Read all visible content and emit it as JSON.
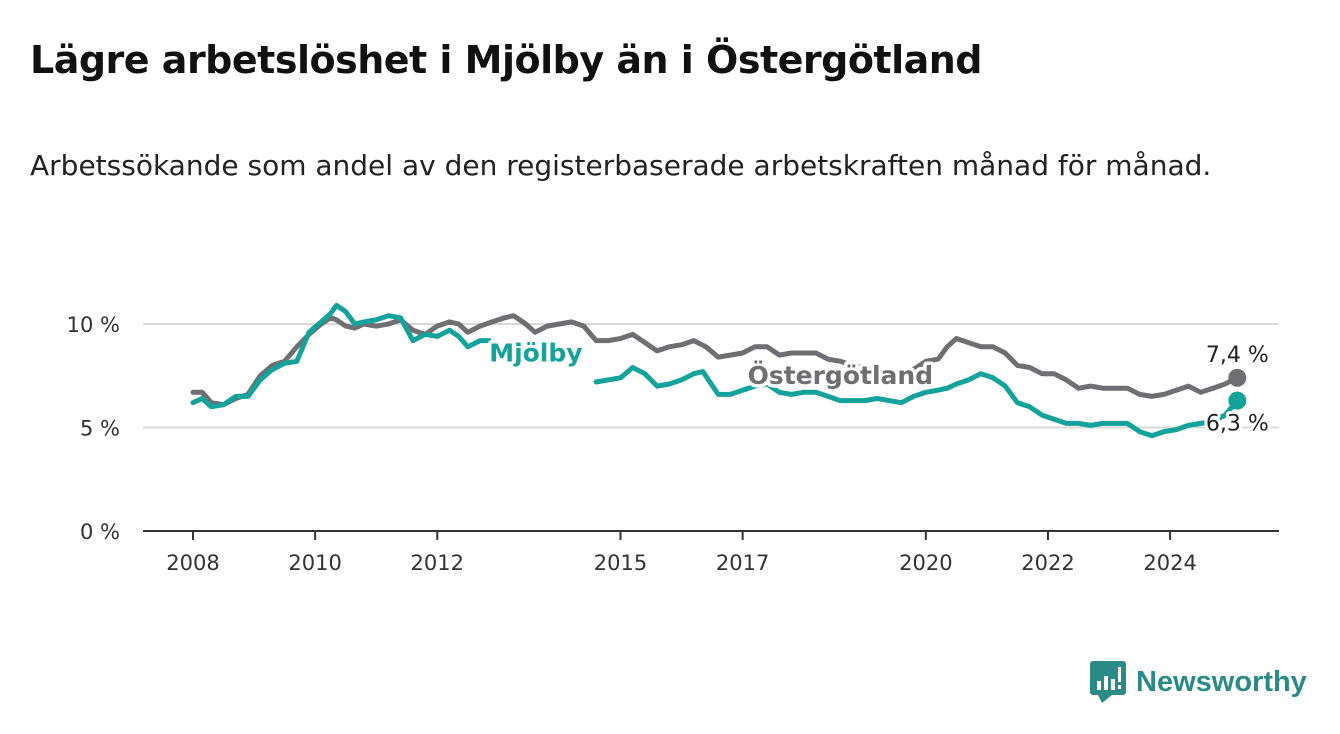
{
  "title": "Lägre arbetslöshet i Mjölby än i Östergötland",
  "subtitle": "Arbetssökande som andel av den registerbaserade arbetskraften månad för månad.",
  "brand": {
    "name": "Newsworthy",
    "icon": "newsworthy-logo-icon",
    "color": "#2a8b86"
  },
  "chart_data": {
    "type": "line",
    "title": "Lägre arbetslöshet i Mjölby än i Östergötland",
    "subtitle": "Arbetssökande som andel av den registerbaserade arbetskraften månad för månad.",
    "xlabel": "",
    "ylabel": "",
    "xlim": [
      2007.8,
      2025.7
    ],
    "ylim": [
      0,
      10
    ],
    "yticks": [
      {
        "value": 0,
        "label": "0 %"
      },
      {
        "value": 5,
        "label": "5 %"
      },
      {
        "value": 10,
        "label": "10 %"
      }
    ],
    "xticks": [
      {
        "value": 2008,
        "label": "2008"
      },
      {
        "value": 2010,
        "label": "2010"
      },
      {
        "value": 2012,
        "label": "2012"
      },
      {
        "value": 2015,
        "label": "2015"
      },
      {
        "value": 2017,
        "label": "2017"
      },
      {
        "value": 2020,
        "label": "2020"
      },
      {
        "value": 2022,
        "label": "2022"
      },
      {
        "value": 2024,
        "label": "2024"
      }
    ],
    "grid": true,
    "legend": "inline labels",
    "series": [
      {
        "name": "Östergötland",
        "color": "#6e6e73",
        "end_label": "7,4 %",
        "points": [
          [
            2008.0,
            6.7
          ],
          [
            2008.15,
            6.7
          ],
          [
            2008.3,
            6.2
          ],
          [
            2008.5,
            6.1
          ],
          [
            2008.7,
            6.4
          ],
          [
            2008.9,
            6.6
          ],
          [
            2009.1,
            7.5
          ],
          [
            2009.3,
            8.0
          ],
          [
            2009.5,
            8.2
          ],
          [
            2009.7,
            8.9
          ],
          [
            2009.9,
            9.5
          ],
          [
            2010.1,
            10.0
          ],
          [
            2010.25,
            10.3
          ],
          [
            2010.35,
            10.2
          ],
          [
            2010.5,
            9.9
          ],
          [
            2010.65,
            9.8
          ],
          [
            2010.8,
            10.0
          ],
          [
            2011.0,
            9.9
          ],
          [
            2011.2,
            10.0
          ],
          [
            2011.4,
            10.2
          ],
          [
            2011.6,
            9.7
          ],
          [
            2011.8,
            9.5
          ],
          [
            2012.0,
            9.9
          ],
          [
            2012.2,
            10.1
          ],
          [
            2012.35,
            10.0
          ],
          [
            2012.5,
            9.6
          ],
          [
            2012.7,
            9.9
          ],
          [
            2012.9,
            10.1
          ],
          [
            2013.1,
            10.3
          ],
          [
            2013.25,
            10.4
          ],
          [
            2013.45,
            10.0
          ],
          [
            2013.6,
            9.6
          ],
          [
            2013.8,
            9.9
          ],
          [
            2014.0,
            10.0
          ],
          [
            2014.2,
            10.1
          ],
          [
            2014.4,
            9.9
          ],
          [
            2014.6,
            9.2
          ],
          [
            2014.8,
            9.2
          ],
          [
            2015.0,
            9.3
          ],
          [
            2015.2,
            9.5
          ],
          [
            2015.4,
            9.1
          ],
          [
            2015.6,
            8.7
          ],
          [
            2015.8,
            8.9
          ],
          [
            2016.0,
            9.0
          ],
          [
            2016.2,
            9.2
          ],
          [
            2016.4,
            8.9
          ],
          [
            2016.6,
            8.4
          ],
          [
            2016.8,
            8.5
          ],
          [
            2017.0,
            8.6
          ],
          [
            2017.2,
            8.9
          ],
          [
            2017.4,
            8.9
          ],
          [
            2017.6,
            8.5
          ],
          [
            2017.8,
            8.6
          ],
          [
            2018.0,
            8.6
          ],
          [
            2018.2,
            8.6
          ],
          [
            2018.4,
            8.3
          ],
          [
            2018.6,
            8.2
          ],
          [
            2018.8,
            8.0
          ],
          [
            2019.0,
            7.9
          ],
          [
            2019.2,
            7.8
          ],
          [
            2019.4,
            7.7
          ],
          [
            2019.6,
            7.7
          ],
          [
            2019.8,
            7.8
          ],
          [
            2020.0,
            8.2
          ],
          [
            2020.2,
            8.3
          ],
          [
            2020.35,
            8.9
          ],
          [
            2020.5,
            9.3
          ],
          [
            2020.7,
            9.1
          ],
          [
            2020.9,
            8.9
          ],
          [
            2021.1,
            8.9
          ],
          [
            2021.3,
            8.6
          ],
          [
            2021.5,
            8.0
          ],
          [
            2021.7,
            7.9
          ],
          [
            2021.9,
            7.6
          ],
          [
            2022.1,
            7.6
          ],
          [
            2022.3,
            7.3
          ],
          [
            2022.5,
            6.9
          ],
          [
            2022.7,
            7.0
          ],
          [
            2022.9,
            6.9
          ],
          [
            2023.1,
            6.9
          ],
          [
            2023.3,
            6.9
          ],
          [
            2023.5,
            6.6
          ],
          [
            2023.7,
            6.5
          ],
          [
            2023.9,
            6.6
          ],
          [
            2024.1,
            6.8
          ],
          [
            2024.3,
            7.0
          ],
          [
            2024.5,
            6.7
          ],
          [
            2024.7,
            6.9
          ],
          [
            2024.9,
            7.1
          ],
          [
            2025.1,
            7.4
          ]
        ]
      },
      {
        "name": "Mjölby",
        "color": "#13a39a",
        "end_label": "6,3 %",
        "points": [
          [
            2008.0,
            6.2
          ],
          [
            2008.15,
            6.4
          ],
          [
            2008.3,
            6.0
          ],
          [
            2008.5,
            6.1
          ],
          [
            2008.7,
            6.5
          ],
          [
            2008.9,
            6.5
          ],
          [
            2009.1,
            7.3
          ],
          [
            2009.3,
            7.8
          ],
          [
            2009.5,
            8.1
          ],
          [
            2009.7,
            8.2
          ],
          [
            2009.9,
            9.6
          ],
          [
            2010.1,
            10.1
          ],
          [
            2010.25,
            10.5
          ],
          [
            2010.35,
            10.9
          ],
          [
            2010.5,
            10.6
          ],
          [
            2010.65,
            10.0
          ],
          [
            2010.8,
            10.1
          ],
          [
            2011.0,
            10.2
          ],
          [
            2011.2,
            10.4
          ],
          [
            2011.4,
            10.3
          ],
          [
            2011.6,
            9.2
          ],
          [
            2011.8,
            9.5
          ],
          [
            2012.0,
            9.4
          ],
          [
            2012.2,
            9.7
          ],
          [
            2012.35,
            9.4
          ],
          [
            2012.5,
            8.9
          ],
          [
            2012.7,
            9.2
          ],
          [
            2012.85,
            9.2
          ],
          [
            2014.6,
            7.2
          ],
          [
            2014.8,
            7.3
          ],
          [
            2015.0,
            7.4
          ],
          [
            2015.2,
            7.9
          ],
          [
            2015.4,
            7.6
          ],
          [
            2015.6,
            7.0
          ],
          [
            2015.8,
            7.1
          ],
          [
            2016.0,
            7.3
          ],
          [
            2016.2,
            7.6
          ],
          [
            2016.35,
            7.7
          ],
          [
            2016.6,
            6.6
          ],
          [
            2016.8,
            6.6
          ],
          [
            2017.0,
            6.8
          ],
          [
            2017.2,
            7.0
          ],
          [
            2017.4,
            7.1
          ],
          [
            2017.6,
            6.7
          ],
          [
            2017.8,
            6.6
          ],
          [
            2018.0,
            6.7
          ],
          [
            2018.2,
            6.7
          ],
          [
            2018.4,
            6.5
          ],
          [
            2018.6,
            6.3
          ],
          [
            2018.8,
            6.3
          ],
          [
            2019.0,
            6.3
          ],
          [
            2019.2,
            6.4
          ],
          [
            2019.4,
            6.3
          ],
          [
            2019.6,
            6.2
          ],
          [
            2019.8,
            6.5
          ],
          [
            2020.0,
            6.7
          ],
          [
            2020.2,
            6.8
          ],
          [
            2020.35,
            6.9
          ],
          [
            2020.5,
            7.1
          ],
          [
            2020.7,
            7.3
          ],
          [
            2020.9,
            7.6
          ],
          [
            2021.1,
            7.4
          ],
          [
            2021.3,
            7.0
          ],
          [
            2021.5,
            6.2
          ],
          [
            2021.7,
            6.0
          ],
          [
            2021.9,
            5.6
          ],
          [
            2022.1,
            5.4
          ],
          [
            2022.3,
            5.2
          ],
          [
            2022.5,
            5.2
          ],
          [
            2022.7,
            5.1
          ],
          [
            2022.9,
            5.2
          ],
          [
            2023.1,
            5.2
          ],
          [
            2023.3,
            5.2
          ],
          [
            2023.5,
            4.8
          ],
          [
            2023.7,
            4.6
          ],
          [
            2023.9,
            4.8
          ],
          [
            2024.1,
            4.9
          ],
          [
            2024.3,
            5.1
          ],
          [
            2024.5,
            5.2
          ],
          [
            2024.7,
            5.3
          ],
          [
            2024.9,
            5.6
          ],
          [
            2025.1,
            6.3
          ]
        ]
      }
    ]
  }
}
